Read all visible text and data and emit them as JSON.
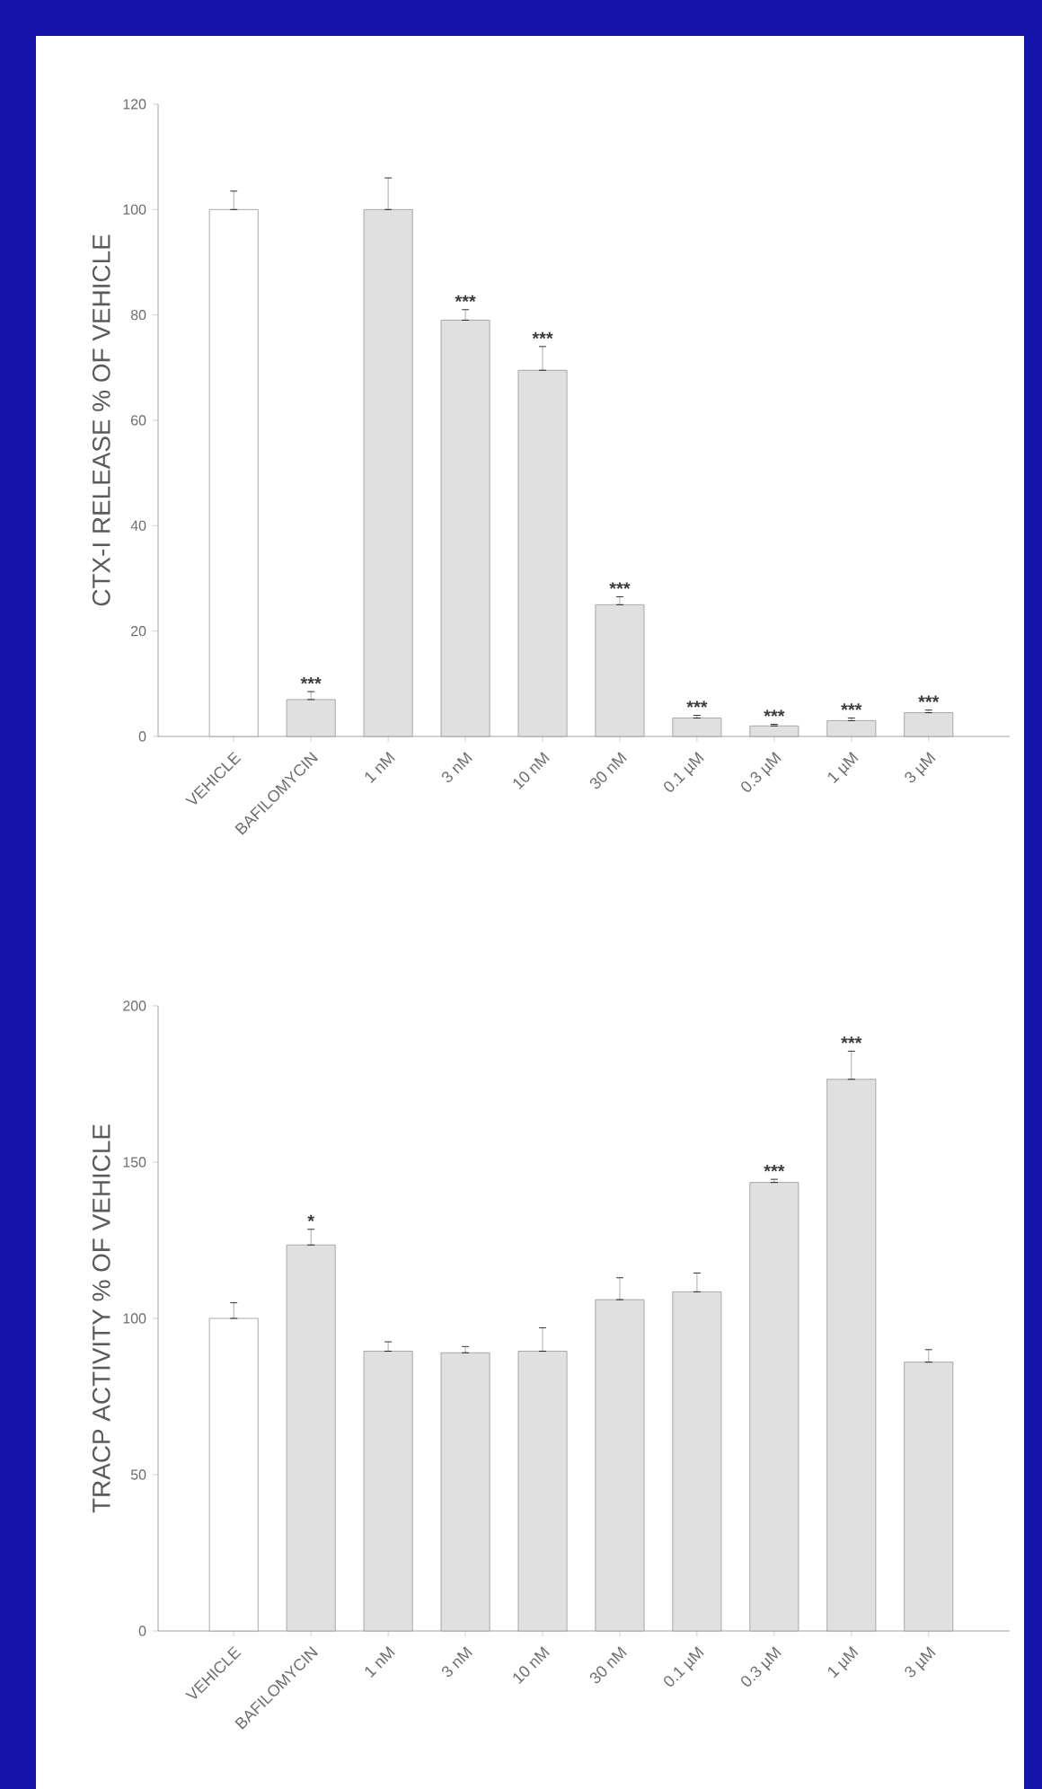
{
  "chart_data": [
    {
      "type": "bar",
      "ylabel": "CTX-I RELEASE % OF VEHICLE",
      "categories": [
        "VEHICLE",
        "BAFILOMYCIN",
        "1 nM",
        "3 nM",
        "10 nM",
        "30 nM",
        "0.1 µM",
        "0.3 µM",
        "1 µM",
        "3 µM"
      ],
      "values": [
        100,
        7,
        100,
        79,
        69.5,
        25,
        3.5,
        2,
        3,
        4.5
      ],
      "errors": [
        [
          100,
          103.5
        ],
        [
          7,
          8.5
        ],
        [
          100,
          106
        ],
        [
          79,
          81
        ],
        [
          69.5,
          74
        ],
        [
          25,
          26.5
        ],
        [
          3.5,
          4
        ],
        [
          2,
          2.3
        ],
        [
          3,
          3.5
        ],
        [
          4.5,
          5
        ]
      ],
      "colors": [
        "#ffffff",
        "#e0e0e0",
        "#e0e0e0",
        "#e0e0e0",
        "#e0e0e0",
        "#e0e0e0",
        "#e0e0e0",
        "#e0e0e0",
        "#e0e0e0",
        "#e0e0e0"
      ],
      "ylim": [
        0,
        120
      ],
      "yticks": [
        0,
        20,
        40,
        60,
        80,
        100,
        120
      ],
      "annotations": [
        {
          "text": "***",
          "x": "BAFILOMYCIN",
          "y": 8.5
        },
        {
          "text": "***",
          "x": "3 nM",
          "y": 81
        },
        {
          "text": "***",
          "x": "10 nM",
          "y": 74
        },
        {
          "text": "***",
          "x": "30 nM",
          "y": 26.5
        },
        {
          "text": "***",
          "x": "0.1 µM",
          "y": 4
        },
        {
          "text": "***",
          "x": "0.3 µM",
          "y": 2.3
        },
        {
          "text": "***",
          "x": "1 µM",
          "y": 3.5
        },
        {
          "text": "***",
          "x": "3 µM",
          "y": 5
        }
      ]
    },
    {
      "type": "bar",
      "ylabel": "TRACP ACTIVITY % OF VEHICLE",
      "categories": [
        "VEHICLE",
        "BAFILOMYCIN",
        "1 nM",
        "3 nM",
        "10 nM",
        "30 nM",
        "0.1 µM",
        "0.3 µM",
        "1 µM",
        "3 µM"
      ],
      "values": [
        100,
        123.5,
        89.5,
        89,
        89.5,
        106,
        108.5,
        143.5,
        176.5,
        86
      ],
      "errors": [
        [
          100,
          105
        ],
        [
          123.5,
          128.5
        ],
        [
          89.5,
          92.5
        ],
        [
          89,
          91
        ],
        [
          89.5,
          97
        ],
        [
          106,
          113
        ],
        [
          108.5,
          114.5
        ],
        [
          143.5,
          144.5
        ],
        [
          176.5,
          185.5
        ],
        [
          86,
          90
        ]
      ],
      "colors": [
        "#ffffff",
        "#e0e0e0",
        "#e0e0e0",
        "#e0e0e0",
        "#e0e0e0",
        "#e0e0e0",
        "#e0e0e0",
        "#e0e0e0",
        "#e0e0e0",
        "#e0e0e0"
      ],
      "ylim": [
        0,
        200
      ],
      "yticks": [
        0,
        50,
        100,
        150,
        200
      ],
      "annotations": [
        {
          "text": "*",
          "x": "BAFILOMYCIN",
          "y": 128.5
        },
        {
          "text": "***",
          "x": "0.3 µM",
          "y": 144.5
        },
        {
          "text": "***",
          "x": "1 µM",
          "y": 185.5
        }
      ]
    }
  ]
}
